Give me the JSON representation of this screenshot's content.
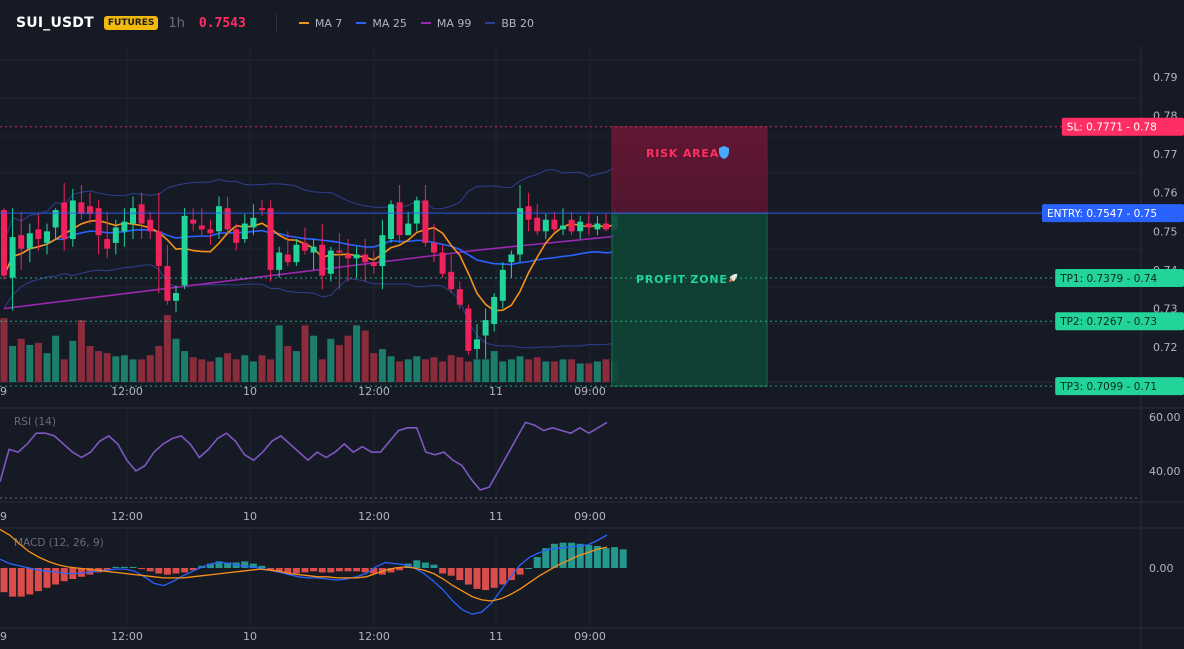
{
  "header": {
    "symbol": "SUI_USDT",
    "badge": "FUTURES",
    "timeframe": "1h",
    "last_price": "0.7543",
    "legend": [
      {
        "label": "MA 7",
        "color": "#f7931a"
      },
      {
        "label": "MA 25",
        "color": "#2962ff"
      },
      {
        "label": "MA 99",
        "color": "#9c27b0"
      },
      {
        "label": "BB 20",
        "color": "#2f3f8f"
      }
    ]
  },
  "colors": {
    "up": "#22d39a",
    "down": "#f0225b",
    "vol_up": "#1b7d6a",
    "vol_down": "#8b2c3c",
    "risk": "#ff2e63",
    "profit": "#22d39a",
    "entry": "#2962ff"
  },
  "chart_data": [
    {
      "type": "candlestick",
      "title": "SUI_USDT 1h",
      "x_tick_labels": [
        "9",
        "12:00",
        "10",
        "12:00",
        "11",
        "09:00"
      ],
      "y_tick_labels": [
        "0.79",
        "0.78",
        "0.77",
        "0.76",
        "0.75",
        "0.74",
        "0.73",
        "0.72",
        "0.71"
      ],
      "ylim": [
        0.7,
        0.79
      ],
      "grid": true,
      "ohlc": [
        {
          "o": 0.7555,
          "h": 0.756,
          "l": 0.7375,
          "c": 0.7385
        },
        {
          "o": 0.738,
          "h": 0.756,
          "l": 0.7295,
          "c": 0.7485
        },
        {
          "o": 0.749,
          "h": 0.755,
          "l": 0.74,
          "c": 0.7455
        },
        {
          "o": 0.7455,
          "h": 0.752,
          "l": 0.742,
          "c": 0.7495
        },
        {
          "o": 0.7505,
          "h": 0.7545,
          "l": 0.745,
          "c": 0.748
        },
        {
          "o": 0.747,
          "h": 0.752,
          "l": 0.744,
          "c": 0.75
        },
        {
          "o": 0.751,
          "h": 0.756,
          "l": 0.748,
          "c": 0.7555
        },
        {
          "o": 0.7575,
          "h": 0.7625,
          "l": 0.745,
          "c": 0.748
        },
        {
          "o": 0.748,
          "h": 0.761,
          "l": 0.746,
          "c": 0.758
        },
        {
          "o": 0.7575,
          "h": 0.762,
          "l": 0.753,
          "c": 0.7545
        },
        {
          "o": 0.7565,
          "h": 0.76,
          "l": 0.752,
          "c": 0.7545
        },
        {
          "o": 0.756,
          "h": 0.758,
          "l": 0.744,
          "c": 0.749
        },
        {
          "o": 0.748,
          "h": 0.755,
          "l": 0.743,
          "c": 0.7455
        },
        {
          "o": 0.747,
          "h": 0.753,
          "l": 0.744,
          "c": 0.751
        },
        {
          "o": 0.75,
          "h": 0.756,
          "l": 0.746,
          "c": 0.7525
        },
        {
          "o": 0.752,
          "h": 0.759,
          "l": 0.748,
          "c": 0.756
        },
        {
          "o": 0.757,
          "h": 0.76,
          "l": 0.748,
          "c": 0.752
        },
        {
          "o": 0.753,
          "h": 0.755,
          "l": 0.748,
          "c": 0.75
        },
        {
          "o": 0.75,
          "h": 0.76,
          "l": 0.734,
          "c": 0.741
        },
        {
          "o": 0.741,
          "h": 0.7465,
          "l": 0.731,
          "c": 0.732
        },
        {
          "o": 0.732,
          "h": 0.736,
          "l": 0.729,
          "c": 0.734
        },
        {
          "o": 0.736,
          "h": 0.756,
          "l": 0.735,
          "c": 0.754
        },
        {
          "o": 0.753,
          "h": 0.756,
          "l": 0.75,
          "c": 0.752
        },
        {
          "o": 0.7515,
          "h": 0.756,
          "l": 0.749,
          "c": 0.7505
        },
        {
          "o": 0.7505,
          "h": 0.753,
          "l": 0.7465,
          "c": 0.7495
        },
        {
          "o": 0.75,
          "h": 0.759,
          "l": 0.748,
          "c": 0.7565
        },
        {
          "o": 0.756,
          "h": 0.759,
          "l": 0.749,
          "c": 0.7505
        },
        {
          "o": 0.7505,
          "h": 0.752,
          "l": 0.745,
          "c": 0.747
        },
        {
          "o": 0.748,
          "h": 0.7545,
          "l": 0.747,
          "c": 0.752
        },
        {
          "o": 0.751,
          "h": 0.757,
          "l": 0.749,
          "c": 0.7535
        },
        {
          "o": 0.756,
          "h": 0.758,
          "l": 0.754,
          "c": 0.7555
        },
        {
          "o": 0.756,
          "h": 0.758,
          "l": 0.737,
          "c": 0.74
        },
        {
          "o": 0.74,
          "h": 0.746,
          "l": 0.738,
          "c": 0.7445
        },
        {
          "o": 0.744,
          "h": 0.75,
          "l": 0.741,
          "c": 0.742
        },
        {
          "o": 0.742,
          "h": 0.748,
          "l": 0.741,
          "c": 0.7465
        },
        {
          "o": 0.747,
          "h": 0.751,
          "l": 0.744,
          "c": 0.745
        },
        {
          "o": 0.7445,
          "h": 0.748,
          "l": 0.74,
          "c": 0.746
        },
        {
          "o": 0.7465,
          "h": 0.752,
          "l": 0.735,
          "c": 0.7385
        },
        {
          "o": 0.739,
          "h": 0.746,
          "l": 0.737,
          "c": 0.745
        },
        {
          "o": 0.745,
          "h": 0.7495,
          "l": 0.735,
          "c": 0.7445
        },
        {
          "o": 0.744,
          "h": 0.748,
          "l": 0.737,
          "c": 0.743
        },
        {
          "o": 0.743,
          "h": 0.746,
          "l": 0.738,
          "c": 0.744
        },
        {
          "o": 0.744,
          "h": 0.748,
          "l": 0.737,
          "c": 0.742
        },
        {
          "o": 0.742,
          "h": 0.745,
          "l": 0.739,
          "c": 0.741
        },
        {
          "o": 0.741,
          "h": 0.753,
          "l": 0.735,
          "c": 0.749
        },
        {
          "o": 0.748,
          "h": 0.758,
          "l": 0.747,
          "c": 0.757
        },
        {
          "o": 0.7575,
          "h": 0.762,
          "l": 0.747,
          "c": 0.749
        },
        {
          "o": 0.749,
          "h": 0.755,
          "l": 0.749,
          "c": 0.752
        },
        {
          "o": 0.752,
          "h": 0.759,
          "l": 0.75,
          "c": 0.758
        },
        {
          "o": 0.758,
          "h": 0.762,
          "l": 0.746,
          "c": 0.747
        },
        {
          "o": 0.747,
          "h": 0.752,
          "l": 0.742,
          "c": 0.7445
        },
        {
          "o": 0.7445,
          "h": 0.7465,
          "l": 0.738,
          "c": 0.739
        },
        {
          "o": 0.7395,
          "h": 0.744,
          "l": 0.734,
          "c": 0.735
        },
        {
          "o": 0.735,
          "h": 0.737,
          "l": 0.73,
          "c": 0.731
        },
        {
          "o": 0.73,
          "h": 0.731,
          "l": 0.718,
          "c": 0.719
        },
        {
          "o": 0.7195,
          "h": 0.726,
          "l": 0.717,
          "c": 0.722
        },
        {
          "o": 0.723,
          "h": 0.73,
          "l": 0.717,
          "c": 0.727
        },
        {
          "o": 0.726,
          "h": 0.734,
          "l": 0.724,
          "c": 0.733
        },
        {
          "o": 0.732,
          "h": 0.742,
          "l": 0.73,
          "c": 0.74
        },
        {
          "o": 0.742,
          "h": 0.745,
          "l": 0.738,
          "c": 0.744
        },
        {
          "o": 0.744,
          "h": 0.762,
          "l": 0.742,
          "c": 0.756
        },
        {
          "o": 0.7565,
          "h": 0.76,
          "l": 0.75,
          "c": 0.753
        },
        {
          "o": 0.7535,
          "h": 0.757,
          "l": 0.749,
          "c": 0.75
        },
        {
          "o": 0.75,
          "h": 0.7545,
          "l": 0.748,
          "c": 0.753
        },
        {
          "o": 0.753,
          "h": 0.755,
          "l": 0.75,
          "c": 0.7505
        },
        {
          "o": 0.7505,
          "h": 0.756,
          "l": 0.749,
          "c": 0.7515
        },
        {
          "o": 0.753,
          "h": 0.755,
          "l": 0.749,
          "c": 0.75
        },
        {
          "o": 0.75,
          "h": 0.754,
          "l": 0.748,
          "c": 0.7525
        },
        {
          "o": 0.752,
          "h": 0.755,
          "l": 0.749,
          "c": 0.751
        },
        {
          "o": 0.7505,
          "h": 0.754,
          "l": 0.749,
          "c": 0.752
        },
        {
          "o": 0.752,
          "h": 0.7545,
          "l": 0.75,
          "c": 0.7505
        },
        {
          "o": 0.7505,
          "h": 0.756,
          "l": 0.75,
          "c": 0.7543
        }
      ],
      "levels": [
        {
          "name": "SL",
          "label": "SL: 0.7771",
          "price": 0.7771,
          "color": "#ff2e63"
        },
        {
          "name": "ENTRY",
          "label": "ENTRY: 0.7547",
          "price": 0.7547,
          "color": "#2962ff"
        },
        {
          "name": "TP1",
          "label": "TP1: 0.7379",
          "price": 0.7379,
          "color": "#22d39a"
        },
        {
          "name": "TP2",
          "label": "TP2: 0.7267",
          "price": 0.7267,
          "color": "#22d39a"
        },
        {
          "name": "TP3",
          "label": "TP3: 0.7099",
          "price": 0.7099,
          "color": "#22d39a"
        }
      ],
      "level_axis_tags": [
        "0.78",
        "0.75",
        "0.74",
        "0.73",
        "0.71"
      ],
      "zones": {
        "risk_label": "RISK AREA",
        "profit_label": "PROFIT ZONE"
      }
    },
    {
      "type": "line",
      "title": "RSI (14)",
      "y_tick_labels": [
        "60.00",
        "40.00"
      ],
      "ylim": [
        28,
        64
      ],
      "dashed_level": 30,
      "values": [
        36,
        48,
        47,
        50,
        54,
        54,
        53,
        50,
        47,
        45,
        47,
        51,
        53,
        50,
        44,
        40,
        42,
        47,
        50,
        52,
        53,
        50,
        45,
        48,
        52,
        54,
        51,
        46,
        44,
        47,
        51,
        53,
        50,
        47,
        44,
        47,
        45,
        47,
        50,
        47,
        49,
        47,
        47,
        51,
        55,
        56,
        56,
        47,
        46,
        47,
        44,
        42,
        37,
        33,
        34,
        40,
        46,
        52,
        58,
        57,
        55,
        56,
        55,
        54,
        56,
        54,
        56,
        58
      ]
    },
    {
      "type": "bar",
      "title": "MACD (12, 26, 9)",
      "y_tick_labels": [
        "0.00"
      ],
      "ylim": [
        -0.0065,
        0.0035
      ],
      "histogram": [
        -0.0022,
        -0.0026,
        -0.0026,
        -0.0024,
        -0.0021,
        -0.0018,
        -0.0015,
        -0.0012,
        -0.001,
        -0.0008,
        -0.0006,
        -0.0004,
        -0.0002,
        0.0001,
        0.0001,
        0.0001,
        -0.0001,
        -0.0003,
        -0.0005,
        -0.0006,
        -0.0005,
        -0.0004,
        -0.0002,
        0.0002,
        0.0004,
        0.0006,
        0.0005,
        0.0005,
        0.0006,
        0.0004,
        0.0002,
        -0.0002,
        -0.0004,
        -0.0005,
        -0.0005,
        -0.0004,
        -0.0003,
        -0.0004,
        -0.0004,
        -0.0003,
        -0.0003,
        -0.0003,
        -0.0004,
        -0.0005,
        -0.0006,
        -0.0004,
        -0.0002,
        0.0004,
        0.0007,
        0.0005,
        0.0003,
        -0.0005,
        -0.0007,
        -0.0011,
        -0.0015,
        -0.0019,
        -0.002,
        -0.0018,
        -0.0015,
        -0.0011,
        -0.0006,
        0.0,
        0.001,
        0.0018,
        0.0022,
        0.0023,
        0.0023,
        0.0022,
        0.0021,
        0.002,
        0.0018,
        0.0019,
        0.0017
      ],
      "macd": [
        0.0008,
        0.0004,
        0.0002,
        0.0,
        -0.0002,
        -0.0003,
        -0.0004,
        -0.0005,
        -0.0005,
        -0.0004,
        -0.0003,
        -0.0002,
        -0.0001,
        -0.0001,
        -0.0003,
        -0.0008,
        -0.0014,
        -0.0016,
        -0.0012,
        -0.0007,
        -0.0003,
        0.0001,
        0.0004,
        0.0005,
        0.0004,
        0.0002,
        0.0001,
        0.0,
        -0.0002,
        -0.0004,
        -0.0006,
        -0.0008,
        -0.0009,
        -0.0009,
        -0.001,
        -0.0011,
        -0.001,
        -0.0008,
        -0.0005,
        0.0001,
        0.0005,
        0.0004,
        0.0003,
        0.0,
        -0.0005,
        -0.0012,
        -0.002,
        -0.003,
        -0.0038,
        -0.0042,
        -0.004,
        -0.0032,
        -0.002,
        -0.0008,
        0.0003,
        0.001,
        0.0014,
        0.0017,
        0.0018,
        0.0019,
        0.002,
        0.0021,
        0.0025,
        0.003
      ],
      "signal": [
        0.0035,
        0.003,
        0.0022,
        0.0015,
        0.001,
        0.0006,
        0.0003,
        0.0001,
        0.0,
        -0.0001,
        -0.0002,
        -0.0003,
        -0.0004,
        -0.0005,
        -0.0006,
        -0.0007,
        -0.0008,
        -0.0009,
        -0.0009,
        -0.0009,
        -0.0008,
        -0.0007,
        -0.0006,
        -0.0005,
        -0.0004,
        -0.0003,
        -0.0002,
        -0.0001,
        -0.0002,
        -0.0003,
        -0.0005,
        -0.0006,
        -0.0007,
        -0.0008,
        -0.0008,
        -0.0009,
        -0.0009,
        -0.0009,
        -0.0008,
        -0.0005,
        -0.0002,
        0.0,
        0.0001,
        0.0,
        -0.0002,
        -0.0005,
        -0.001,
        -0.0016,
        -0.0021,
        -0.0026,
        -0.0029,
        -0.003,
        -0.0028,
        -0.0024,
        -0.0019,
        -0.0013,
        -0.0007,
        -0.0002,
        0.0003,
        0.0007,
        0.0011,
        0.0014,
        0.0017,
        0.0019
      ]
    }
  ]
}
